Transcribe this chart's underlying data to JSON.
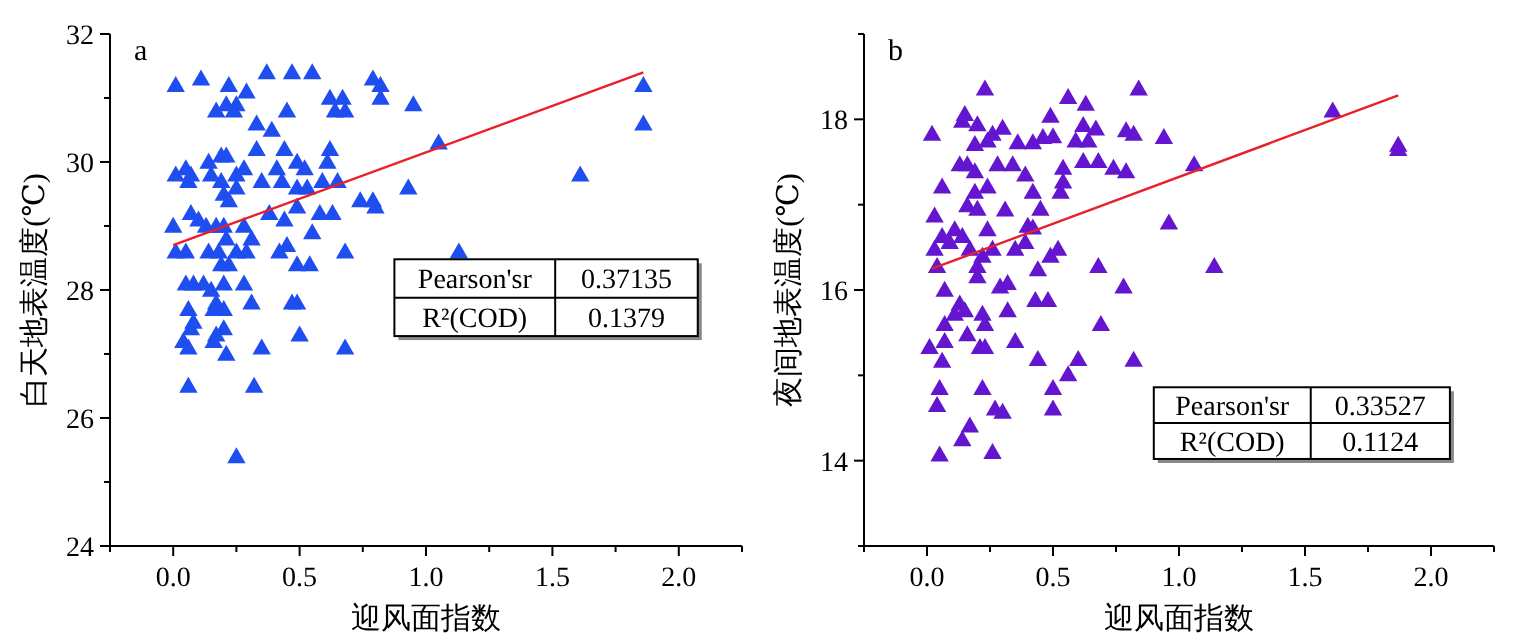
{
  "chart_data": [
    {
      "type": "scatter",
      "title": "a",
      "xlabel": "迎风面指数",
      "ylabel": "白天地表温度(℃)",
      "xlim": [
        -0.25,
        2.25
      ],
      "ylim": [
        24,
        32
      ],
      "xticks": [
        {
          "value": -0.25,
          "label": null
        },
        {
          "value": 0,
          "label": "0.0"
        },
        {
          "value": 0.25,
          "label": null
        },
        {
          "value": 0.5,
          "label": "0.5"
        },
        {
          "value": 0.75,
          "label": null
        },
        {
          "value": 1,
          "label": "1.0"
        },
        {
          "value": 1.25,
          "label": null
        },
        {
          "value": 1.5,
          "label": "1.5"
        },
        {
          "value": 1.75,
          "label": null
        },
        {
          "value": 2,
          "label": "2.0"
        },
        {
          "value": 2.25,
          "label": null
        }
      ],
      "yticks": [
        24,
        {
          "value": 25,
          "label": null
        },
        26,
        {
          "value": 27,
          "label": null
        },
        28,
        {
          "value": 29,
          "label": null
        },
        30,
        {
          "value": 31,
          "label": null
        },
        32
      ],
      "series": [
        {
          "type": "scatter",
          "marker": "triangle",
          "color": "#1f4ef0",
          "x": [
            0.01,
            0.11,
            0.22,
            0.29,
            0.37,
            0.47,
            0.55,
            0.79,
            0.82,
            0.25,
            0.21,
            0.17,
            0.24,
            0.33,
            0.39,
            0.45,
            0.62,
            0.67,
            0.64,
            0.68,
            0.82,
            0.95,
            1.05,
            1.86,
            1.86,
            0.33,
            0.44,
            0.62,
            0.61,
            0.14,
            0.19,
            0.21,
            0.01,
            0.05,
            0.07,
            0.06,
            0.15,
            0.19,
            0.25,
            0.28,
            0.35,
            0.41,
            0.43,
            0.49,
            0.52,
            0.59,
            0.65,
            0.53,
            0.49,
            0.25,
            0.2,
            0.22,
            0.38,
            0.44,
            0.49,
            0.58,
            0.63,
            0.74,
            0.79,
            0.8,
            0.93,
            1.61,
            0.0,
            0.07,
            0.1,
            0.13,
            0.17,
            0.2,
            0.28,
            0.31,
            0.21,
            0.01,
            0.05,
            0.14,
            0.18,
            0.25,
            0.29,
            0.42,
            0.45,
            0.55,
            0.68,
            1.13,
            0.19,
            0.22,
            0.49,
            0.54,
            0.05,
            0.08,
            0.12,
            0.15,
            0.2,
            0.28,
            0.31,
            0.17,
            0.16,
            0.2,
            0.06,
            0.47,
            0.49,
            0.04,
            0.07,
            0.08,
            0.2,
            0.17,
            0.16,
            0.06,
            0.21,
            0.35,
            0.5,
            0.68,
            0.06,
            0.32,
            0.25
          ],
          "values": [
            31.2,
            31.3,
            31.2,
            31.1,
            31.4,
            31.4,
            31.4,
            31.3,
            31.2,
            30.9,
            30.9,
            30.8,
            30.8,
            30.6,
            30.5,
            30.8,
            31.0,
            31.0,
            30.8,
            30.8,
            31.0,
            30.9,
            30.3,
            31.2,
            30.6,
            30.2,
            30.2,
            30.2,
            30.0,
            30.0,
            30.1,
            30.1,
            29.8,
            29.9,
            29.8,
            29.7,
            29.8,
            29.7,
            29.8,
            29.9,
            29.7,
            29.9,
            29.7,
            30.0,
            29.9,
            29.7,
            29.7,
            29.6,
            29.6,
            29.6,
            29.5,
            29.4,
            29.2,
            29.1,
            29.3,
            29.2,
            29.2,
            29.4,
            29.4,
            29.3,
            29.6,
            29.8,
            29.0,
            29.2,
            29.1,
            29.0,
            29.0,
            29.0,
            29.0,
            28.8,
            28.8,
            28.6,
            28.6,
            28.6,
            28.6,
            28.6,
            28.6,
            28.6,
            28.7,
            28.9,
            28.6,
            28.6,
            28.4,
            28.4,
            28.4,
            28.4,
            28.1,
            28.1,
            28.1,
            28.0,
            28.1,
            28.1,
            27.8,
            27.8,
            27.7,
            27.7,
            27.7,
            27.8,
            27.8,
            27.2,
            27.4,
            27.5,
            27.4,
            27.3,
            27.2,
            27.1,
            27.0,
            27.1,
            27.3,
            27.1,
            26.5,
            26.5,
            25.4
          ]
        },
        {
          "type": "line",
          "marker": "none",
          "color": "#e8202a",
          "x": [
            0.0,
            1.86
          ],
          "values": [
            28.7,
            31.4
          ]
        }
      ],
      "annotations": [
        "Pearson'sr",
        "0.37135",
        "R²(COD)",
        "0.1379"
      ]
    },
    {
      "type": "scatter",
      "title": "b",
      "xlabel": "迎风面指数",
      "ylabel": "夜间地表温度(℃)",
      "xlim": [
        -0.25,
        2.25
      ],
      "ylim": [
        13,
        19
      ],
      "xticks": [
        {
          "value": -0.25,
          "label": null
        },
        {
          "value": 0,
          "label": "0.0"
        },
        {
          "value": 0.25,
          "label": null
        },
        {
          "value": 0.5,
          "label": "0.5"
        },
        {
          "value": 0.75,
          "label": null
        },
        {
          "value": 1,
          "label": "1.0"
        },
        {
          "value": 1.25,
          "label": null
        },
        {
          "value": 1.5,
          "label": "1.5"
        },
        {
          "value": 1.75,
          "label": null
        },
        {
          "value": 2,
          "label": "2.0"
        },
        {
          "value": 2.25,
          "label": null
        }
      ],
      "yticks": [
        {
          "value": 13,
          "label": null
        },
        14,
        {
          "value": 15,
          "label": null
        },
        16,
        {
          "value": 17,
          "label": null
        },
        18,
        {
          "value": 19,
          "label": null
        }
      ],
      "series": [
        {
          "type": "scatter",
          "marker": "triangle",
          "color": "#6415d0",
          "x": [
            0.02,
            0.15,
            0.23,
            0.56,
            0.84,
            1.61,
            1.87,
            1.87,
            0.14,
            0.2,
            0.26,
            0.24,
            0.3,
            0.36,
            0.42,
            0.46,
            0.49,
            0.5,
            0.62,
            0.63,
            0.67,
            0.59,
            0.64,
            0.62,
            0.68,
            0.74,
            0.79,
            0.82,
            0.94,
            0.79,
            1.06,
            0.96,
            1.14,
            0.13,
            0.16,
            0.19,
            0.19,
            0.28,
            0.24,
            0.34,
            0.39,
            0.42,
            0.54,
            0.54,
            0.53,
            0.06,
            0.03,
            0.19,
            0.16,
            0.2,
            0.31,
            0.45,
            0.42,
            0.24,
            0.11,
            0.06,
            0.03,
            0.09,
            0.14,
            0.17,
            0.22,
            0.26,
            0.35,
            0.39,
            0.52,
            0.49,
            0.4,
            0.04,
            0.2,
            0.44,
            0.68,
            0.07,
            0.2,
            0.29,
            0.32,
            0.43,
            0.48,
            0.78,
            0.13,
            0.15,
            0.11,
            0.22,
            0.32,
            0.07,
            0.23,
            0.69,
            0.16,
            0.01,
            0.07,
            0.21,
            0.23,
            0.35,
            0.06,
            0.44,
            0.6,
            0.82,
            0.56,
            0.05,
            0.22,
            0.5,
            0.04,
            0.27,
            0.3,
            0.5,
            0.17,
            0.14,
            0.05,
            0.26
          ],
          "values": [
            17.83,
            18.06,
            18.36,
            18.26,
            18.36,
            18.1,
            17.65,
            17.7,
            17.98,
            17.94,
            17.83,
            17.75,
            17.9,
            17.73,
            17.73,
            17.79,
            18.04,
            17.8,
            17.93,
            18.18,
            17.89,
            17.75,
            17.75,
            17.51,
            17.51,
            17.43,
            17.87,
            17.83,
            17.79,
            17.39,
            17.47,
            16.79,
            16.28,
            17.47,
            17.47,
            17.71,
            17.39,
            17.47,
            17.21,
            17.47,
            17.35,
            17.15,
            17.43,
            17.27,
            17.15,
            17.21,
            16.87,
            17.15,
            16.99,
            16.95,
            16.94,
            16.95,
            16.73,
            16.71,
            16.71,
            16.63,
            16.48,
            16.56,
            16.63,
            16.48,
            16.4,
            16.48,
            16.48,
            16.56,
            16.48,
            16.4,
            16.75,
            16.28,
            16.28,
            16.24,
            16.28,
            16.0,
            16.16,
            16.04,
            16.08,
            15.88,
            15.88,
            16.04,
            15.84,
            15.76,
            15.72,
            15.72,
            15.76,
            15.6,
            15.6,
            15.6,
            15.48,
            15.33,
            15.4,
            15.33,
            15.33,
            15.4,
            15.17,
            15.19,
            15.19,
            15.18,
            15.01,
            14.85,
            14.85,
            14.85,
            14.65,
            14.61,
            14.57,
            14.61,
            14.41,
            14.25,
            14.07,
            14.1
          ]
        },
        {
          "type": "line",
          "marker": "none",
          "color": "#e8202a",
          "x": [
            0.02,
            1.87
          ],
          "values": [
            16.25,
            18.28
          ]
        }
      ],
      "annotations": [
        "Pearson'sr",
        "0.33527",
        "R²(COD)",
        "0.1124"
      ]
    }
  ]
}
